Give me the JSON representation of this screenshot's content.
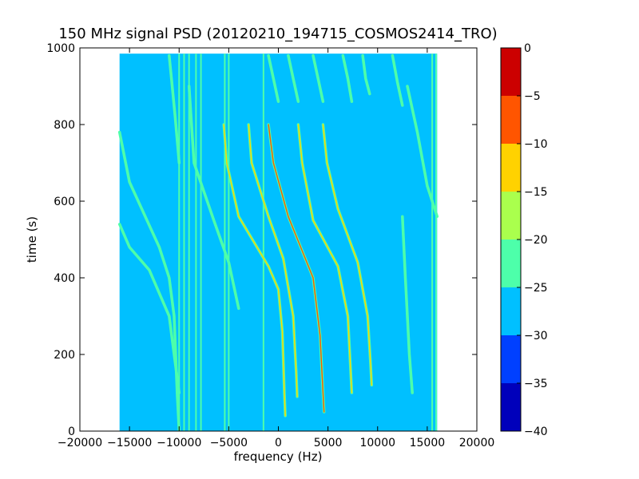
{
  "chart_data": {
    "type": "heatmap",
    "title": "150 MHz signal PSD (20120210_194715_COSMOS2414_TRO)",
    "xlabel": "frequency (Hz)",
    "ylabel": "time (s)",
    "xlim": [
      -20000,
      20000
    ],
    "ylim": [
      0,
      1000
    ],
    "x_ticks": [
      -20000,
      -15000,
      -10000,
      -5000,
      0,
      5000,
      10000,
      15000,
      20000
    ],
    "x_tick_labels": [
      "−20000",
      "−15000",
      "−10000",
      "−5000",
      "0",
      "5000",
      "10000",
      "15000",
      "20000"
    ],
    "y_ticks": [
      0,
      200,
      400,
      600,
      800,
      1000
    ],
    "y_tick_labels": [
      "0",
      "200",
      "400",
      "600",
      "800",
      "1000"
    ],
    "data_extent": {
      "x": [
        -16000,
        16000
      ],
      "y": [
        0,
        985
      ]
    },
    "background_level": -28,
    "colorbar": {
      "range": [
        -40,
        0
      ],
      "ticks": [
        0,
        -5,
        -10,
        -15,
        -20,
        -25,
        -30,
        -35,
        -40
      ],
      "tick_labels": [
        "0",
        "−5",
        "−10",
        "−15",
        "−20",
        "−25",
        "−30",
        "−35",
        "−40"
      ],
      "levels": [
        {
          "from": -40,
          "to": -35,
          "color": "#0000bb"
        },
        {
          "from": -35,
          "to": -30,
          "color": "#0040ff"
        },
        {
          "from": -30,
          "to": -25,
          "color": "#00c0ff"
        },
        {
          "from": -25,
          "to": -20,
          "color": "#4dffaa"
        },
        {
          "from": -20,
          "to": -15,
          "color": "#aaff4d"
        },
        {
          "from": -15,
          "to": -10,
          "color": "#ffd200"
        },
        {
          "from": -10,
          "to": -5,
          "color": "#ff5500"
        },
        {
          "from": -5,
          "to": 0,
          "color": "#cc0000"
        }
      ]
    },
    "vertical_lines": [
      {
        "x": -10000,
        "level": -22
      },
      {
        "x": -9500,
        "level": -22
      },
      {
        "x": -9000,
        "level": -22
      },
      {
        "x": -8300,
        "level": -22
      },
      {
        "x": -7800,
        "level": -22
      },
      {
        "x": -5400,
        "level": -20
      },
      {
        "x": -5000,
        "level": -20
      },
      {
        "x": -1500,
        "level": -22
      },
      {
        "x": 15500,
        "level": -22
      },
      {
        "x": 15900,
        "level": -22
      }
    ],
    "series": [
      {
        "level": -12,
        "points": [
          [
            -5500,
            800
          ],
          [
            -5200,
            700
          ],
          [
            -4000,
            560
          ],
          [
            -1000,
            430
          ],
          [
            0,
            370
          ],
          [
            400,
            260
          ],
          [
            600,
            100
          ],
          [
            700,
            40
          ]
        ]
      },
      {
        "level": -8,
        "points": [
          [
            -1000,
            800
          ],
          [
            -500,
            700
          ],
          [
            1000,
            560
          ],
          [
            3500,
            400
          ],
          [
            4200,
            250
          ],
          [
            4500,
            100
          ],
          [
            4600,
            50
          ]
        ]
      },
      {
        "level": -14,
        "points": [
          [
            -3000,
            800
          ],
          [
            -2700,
            700
          ],
          [
            -1000,
            560
          ],
          [
            500,
            450
          ],
          [
            1500,
            300
          ],
          [
            1800,
            150
          ],
          [
            1900,
            90
          ]
        ]
      },
      {
        "level": -14,
        "points": [
          [
            2000,
            800
          ],
          [
            2400,
            700
          ],
          [
            3500,
            550
          ],
          [
            6000,
            430
          ],
          [
            7000,
            300
          ],
          [
            7300,
            150
          ],
          [
            7400,
            100
          ]
        ]
      },
      {
        "level": -12,
        "points": [
          [
            4500,
            800
          ],
          [
            4900,
            700
          ],
          [
            6000,
            580
          ],
          [
            8000,
            440
          ],
          [
            9000,
            300
          ],
          [
            9300,
            170
          ],
          [
            9400,
            120
          ]
        ]
      },
      {
        "level": -20,
        "points": [
          [
            -1000,
            980
          ],
          [
            -500,
            920
          ],
          [
            0,
            860
          ]
        ]
      },
      {
        "level": -20,
        "points": [
          [
            1000,
            980
          ],
          [
            1500,
            920
          ],
          [
            2000,
            860
          ]
        ]
      },
      {
        "level": -20,
        "points": [
          [
            3500,
            980
          ],
          [
            4000,
            920
          ],
          [
            4500,
            860
          ]
        ]
      },
      {
        "level": -20,
        "points": [
          [
            6500,
            980
          ],
          [
            7000,
            920
          ],
          [
            7400,
            860
          ]
        ]
      },
      {
        "level": -20,
        "points": [
          [
            8500,
            980
          ],
          [
            8800,
            920
          ],
          [
            9200,
            880
          ]
        ]
      },
      {
        "level": -20,
        "points": [
          [
            11500,
            980
          ],
          [
            12000,
            910
          ],
          [
            12500,
            850
          ]
        ]
      },
      {
        "level": -22,
        "points": [
          [
            -11000,
            980
          ],
          [
            -10700,
            900
          ],
          [
            -10400,
            820
          ],
          [
            -10000,
            700
          ]
        ]
      },
      {
        "level": -20,
        "points": [
          [
            -9000,
            900
          ],
          [
            -8500,
            700
          ],
          [
            -6500,
            550
          ],
          [
            -5000,
            440
          ],
          [
            -4000,
            320
          ]
        ]
      },
      {
        "level": -20,
        "points": [
          [
            -16000,
            780
          ],
          [
            -15000,
            650
          ],
          [
            -12000,
            480
          ],
          [
            -11000,
            400
          ],
          [
            -10500,
            300
          ],
          [
            -10200,
            100
          ],
          [
            -10000,
            0
          ]
        ]
      },
      {
        "level": -20,
        "points": [
          [
            -16000,
            540
          ],
          [
            -15000,
            480
          ],
          [
            -13000,
            420
          ],
          [
            -11000,
            300
          ],
          [
            -10500,
            200
          ],
          [
            -10000,
            100
          ]
        ]
      },
      {
        "level": -22,
        "points": [
          [
            12500,
            560
          ],
          [
            12800,
            400
          ],
          [
            13000,
            300
          ],
          [
            13200,
            200
          ],
          [
            13500,
            100
          ]
        ]
      },
      {
        "level": -20,
        "points": [
          [
            13000,
            900
          ],
          [
            14000,
            780
          ],
          [
            15000,
            640
          ],
          [
            16000,
            560
          ]
        ]
      }
    ]
  }
}
